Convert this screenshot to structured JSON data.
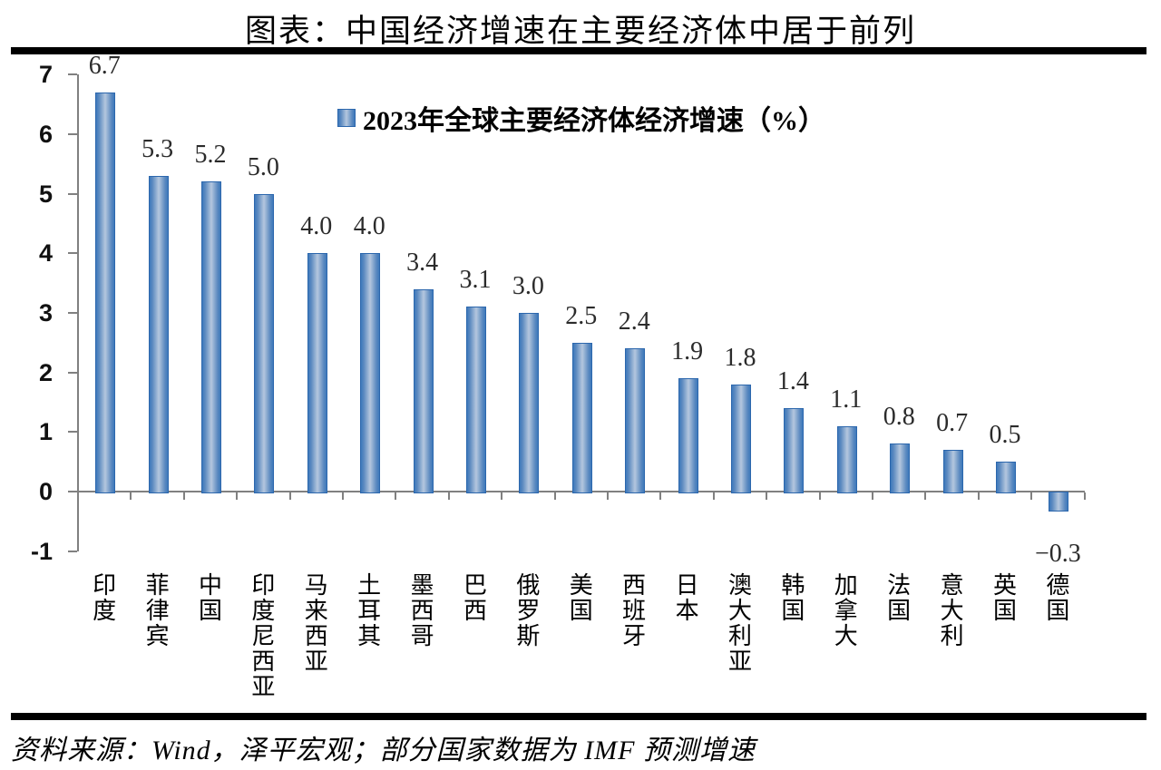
{
  "page": {
    "title": "图表：中国经济增速在主要经济体中居于前列",
    "source": "资料来源：Wind，泽平宏观；部分国家数据为 IMF 预测增速"
  },
  "legend": {
    "marker_icon": "blue-gradient-square",
    "label": "2023年全球主要经济体经济增速（%）"
  },
  "colors": {
    "bar_edge": "#3e79bb",
    "bar_center": "#b4c7de",
    "bar_border": "#2c67ad",
    "axis": "#808080",
    "value_label": "#2b2b2b",
    "rule": "#000000",
    "background": "#ffffff"
  },
  "chart_data": {
    "type": "bar",
    "title": "2023年全球主要经济体经济增速（%）",
    "categories": [
      "印度",
      "菲律宾",
      "中国",
      "印度尼西亚",
      "马来西亚",
      "土耳其",
      "墨西哥",
      "巴西",
      "俄罗斯",
      "美国",
      "西班牙",
      "日本",
      "澳大利亚",
      "韩国",
      "加拿大",
      "法国",
      "意大利",
      "英国",
      "德国"
    ],
    "values": [
      6.7,
      5.3,
      5.2,
      5.0,
      4.0,
      4.0,
      3.4,
      3.1,
      3.0,
      2.5,
      2.4,
      1.9,
      1.8,
      1.4,
      1.1,
      0.8,
      0.7,
      0.5,
      -0.3
    ],
    "value_labels": [
      "6.7",
      "5.3",
      "5.2",
      "5.0",
      "4.0",
      "4.0",
      "3.4",
      "3.1",
      "3.0",
      "2.5",
      "2.4",
      "1.9",
      "1.8",
      "1.4",
      "1.1",
      "0.8",
      "0.7",
      "0.5",
      "−0.3"
    ],
    "xlabel": "",
    "ylabel": "",
    "ylim": [
      -1,
      7
    ],
    "yticks": [
      7,
      6,
      5,
      4,
      3,
      2,
      1,
      0,
      -1
    ],
    "ytick_labels": [
      "7",
      "6",
      "5",
      "4",
      "3",
      "2",
      "1",
      "0",
      "-1"
    ],
    "grid": false,
    "legend_position": "top-center",
    "data_labels": true
  }
}
